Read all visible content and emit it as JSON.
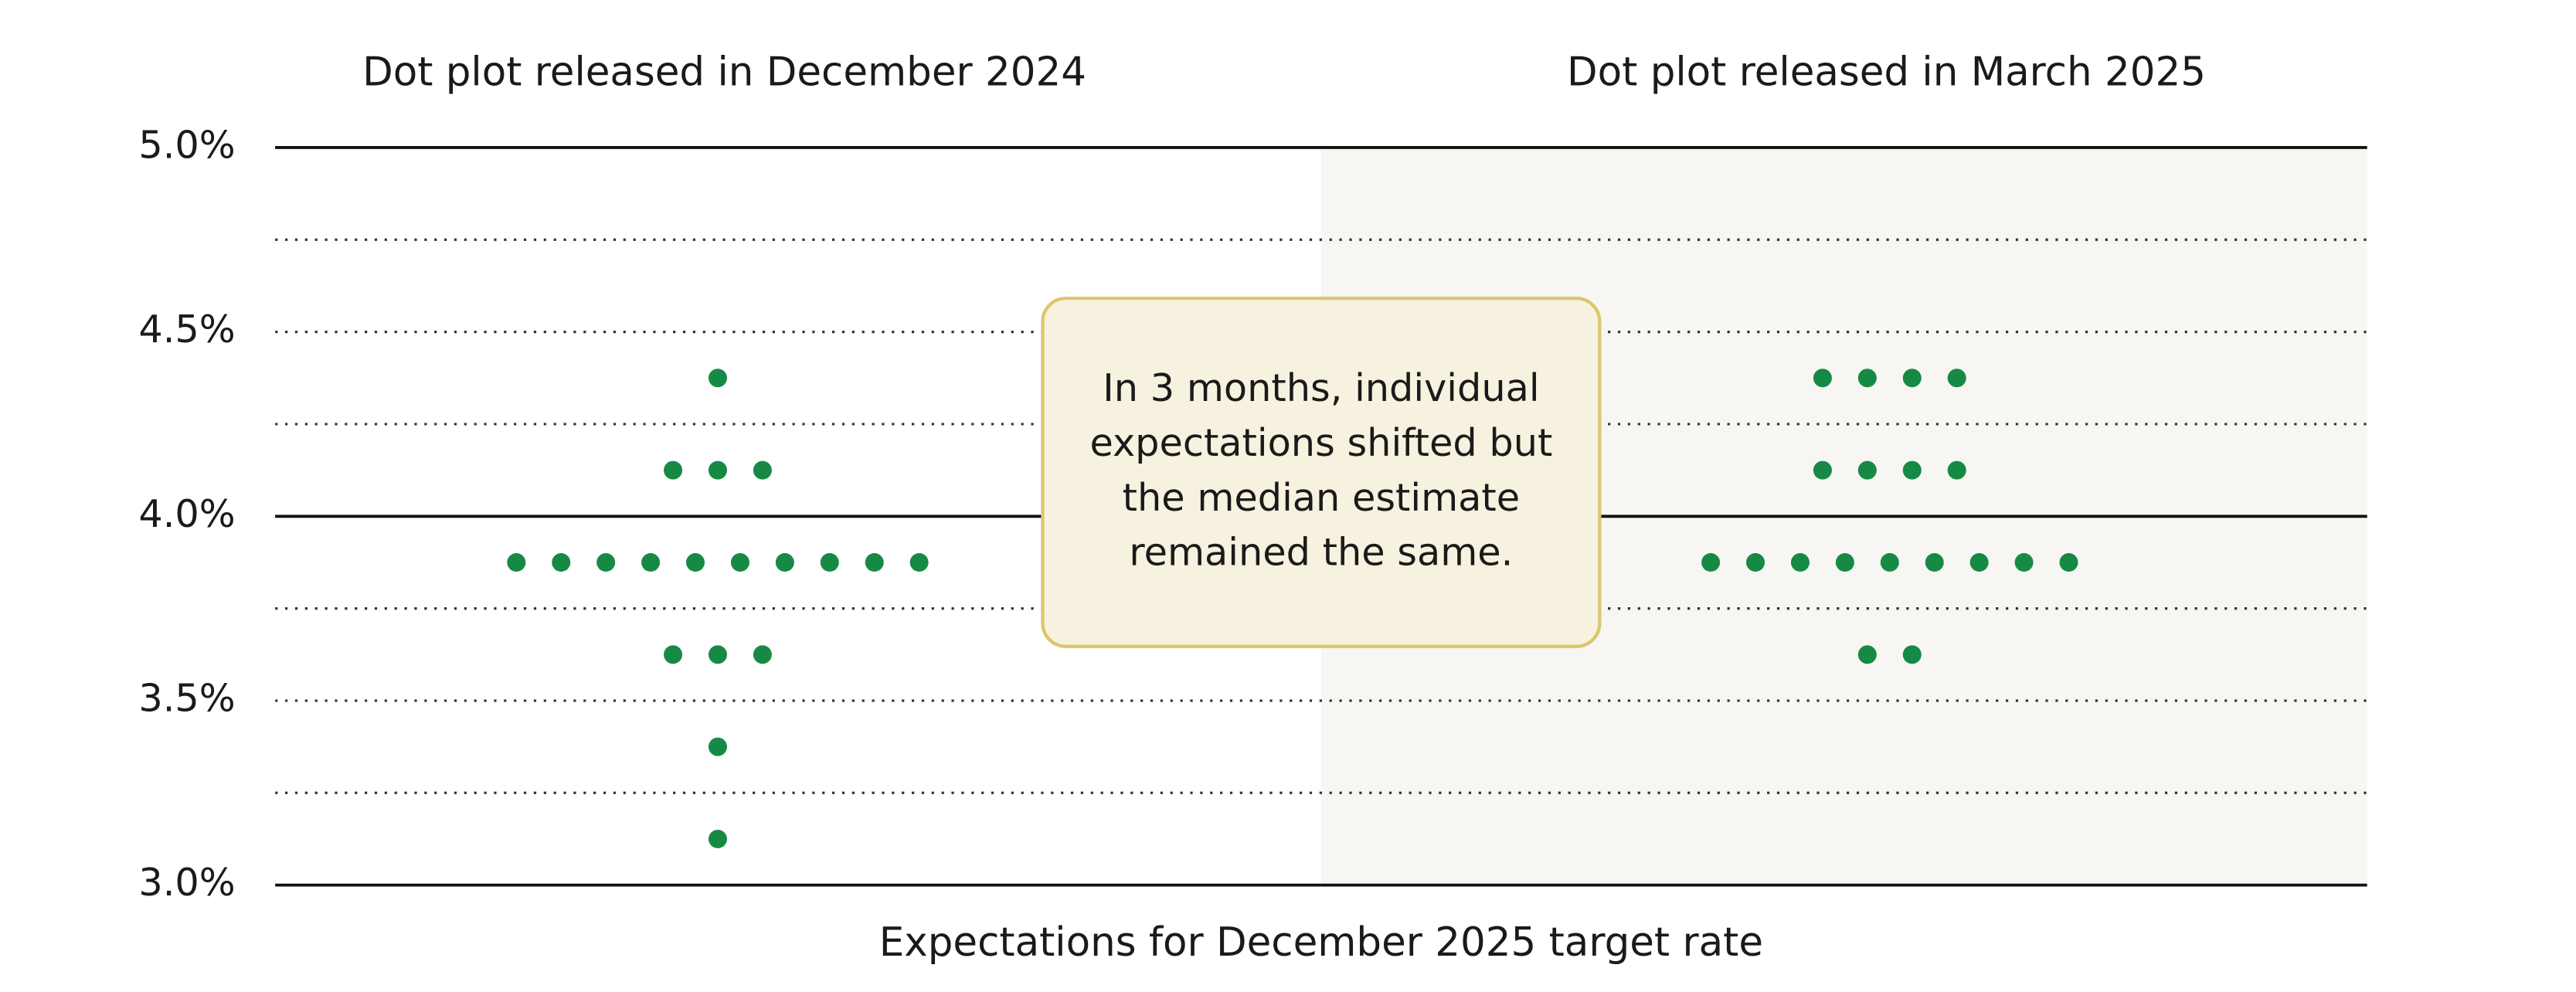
{
  "chart_data": {
    "type": "dot",
    "x_label": "Expectations for December 2025 target rate",
    "annotation": "In 3 months, individual expectations shifted but the median estimate remained the same.",
    "ylim": [
      3.0,
      5.0
    ],
    "yticks": [
      {
        "value": 3.0,
        "label": "3.0%"
      },
      {
        "value": 3.5,
        "label": "3.5%"
      },
      {
        "value": 4.0,
        "label": "4.0%"
      },
      {
        "value": 4.5,
        "label": "4.5%"
      },
      {
        "value": 5.0,
        "label": "5.0%"
      }
    ],
    "minor_yticks": [
      3.25,
      3.75,
      4.25,
      4.75
    ],
    "series": [
      {
        "name": "Dot plot released in December 2024",
        "color": "#168a45",
        "values": [
          4.375,
          4.125,
          4.125,
          4.125,
          3.875,
          3.875,
          3.875,
          3.875,
          3.875,
          3.875,
          3.875,
          3.875,
          3.875,
          3.875,
          3.625,
          3.625,
          3.625,
          3.375,
          3.125
        ]
      },
      {
        "name": "Dot plot released in March 2025",
        "color": "#168a45",
        "shaded": true,
        "values": [
          4.375,
          4.375,
          4.375,
          4.375,
          4.125,
          4.125,
          4.125,
          4.125,
          3.875,
          3.875,
          3.875,
          3.875,
          3.875,
          3.875,
          3.875,
          3.875,
          3.875,
          3.625,
          3.625
        ]
      }
    ]
  }
}
